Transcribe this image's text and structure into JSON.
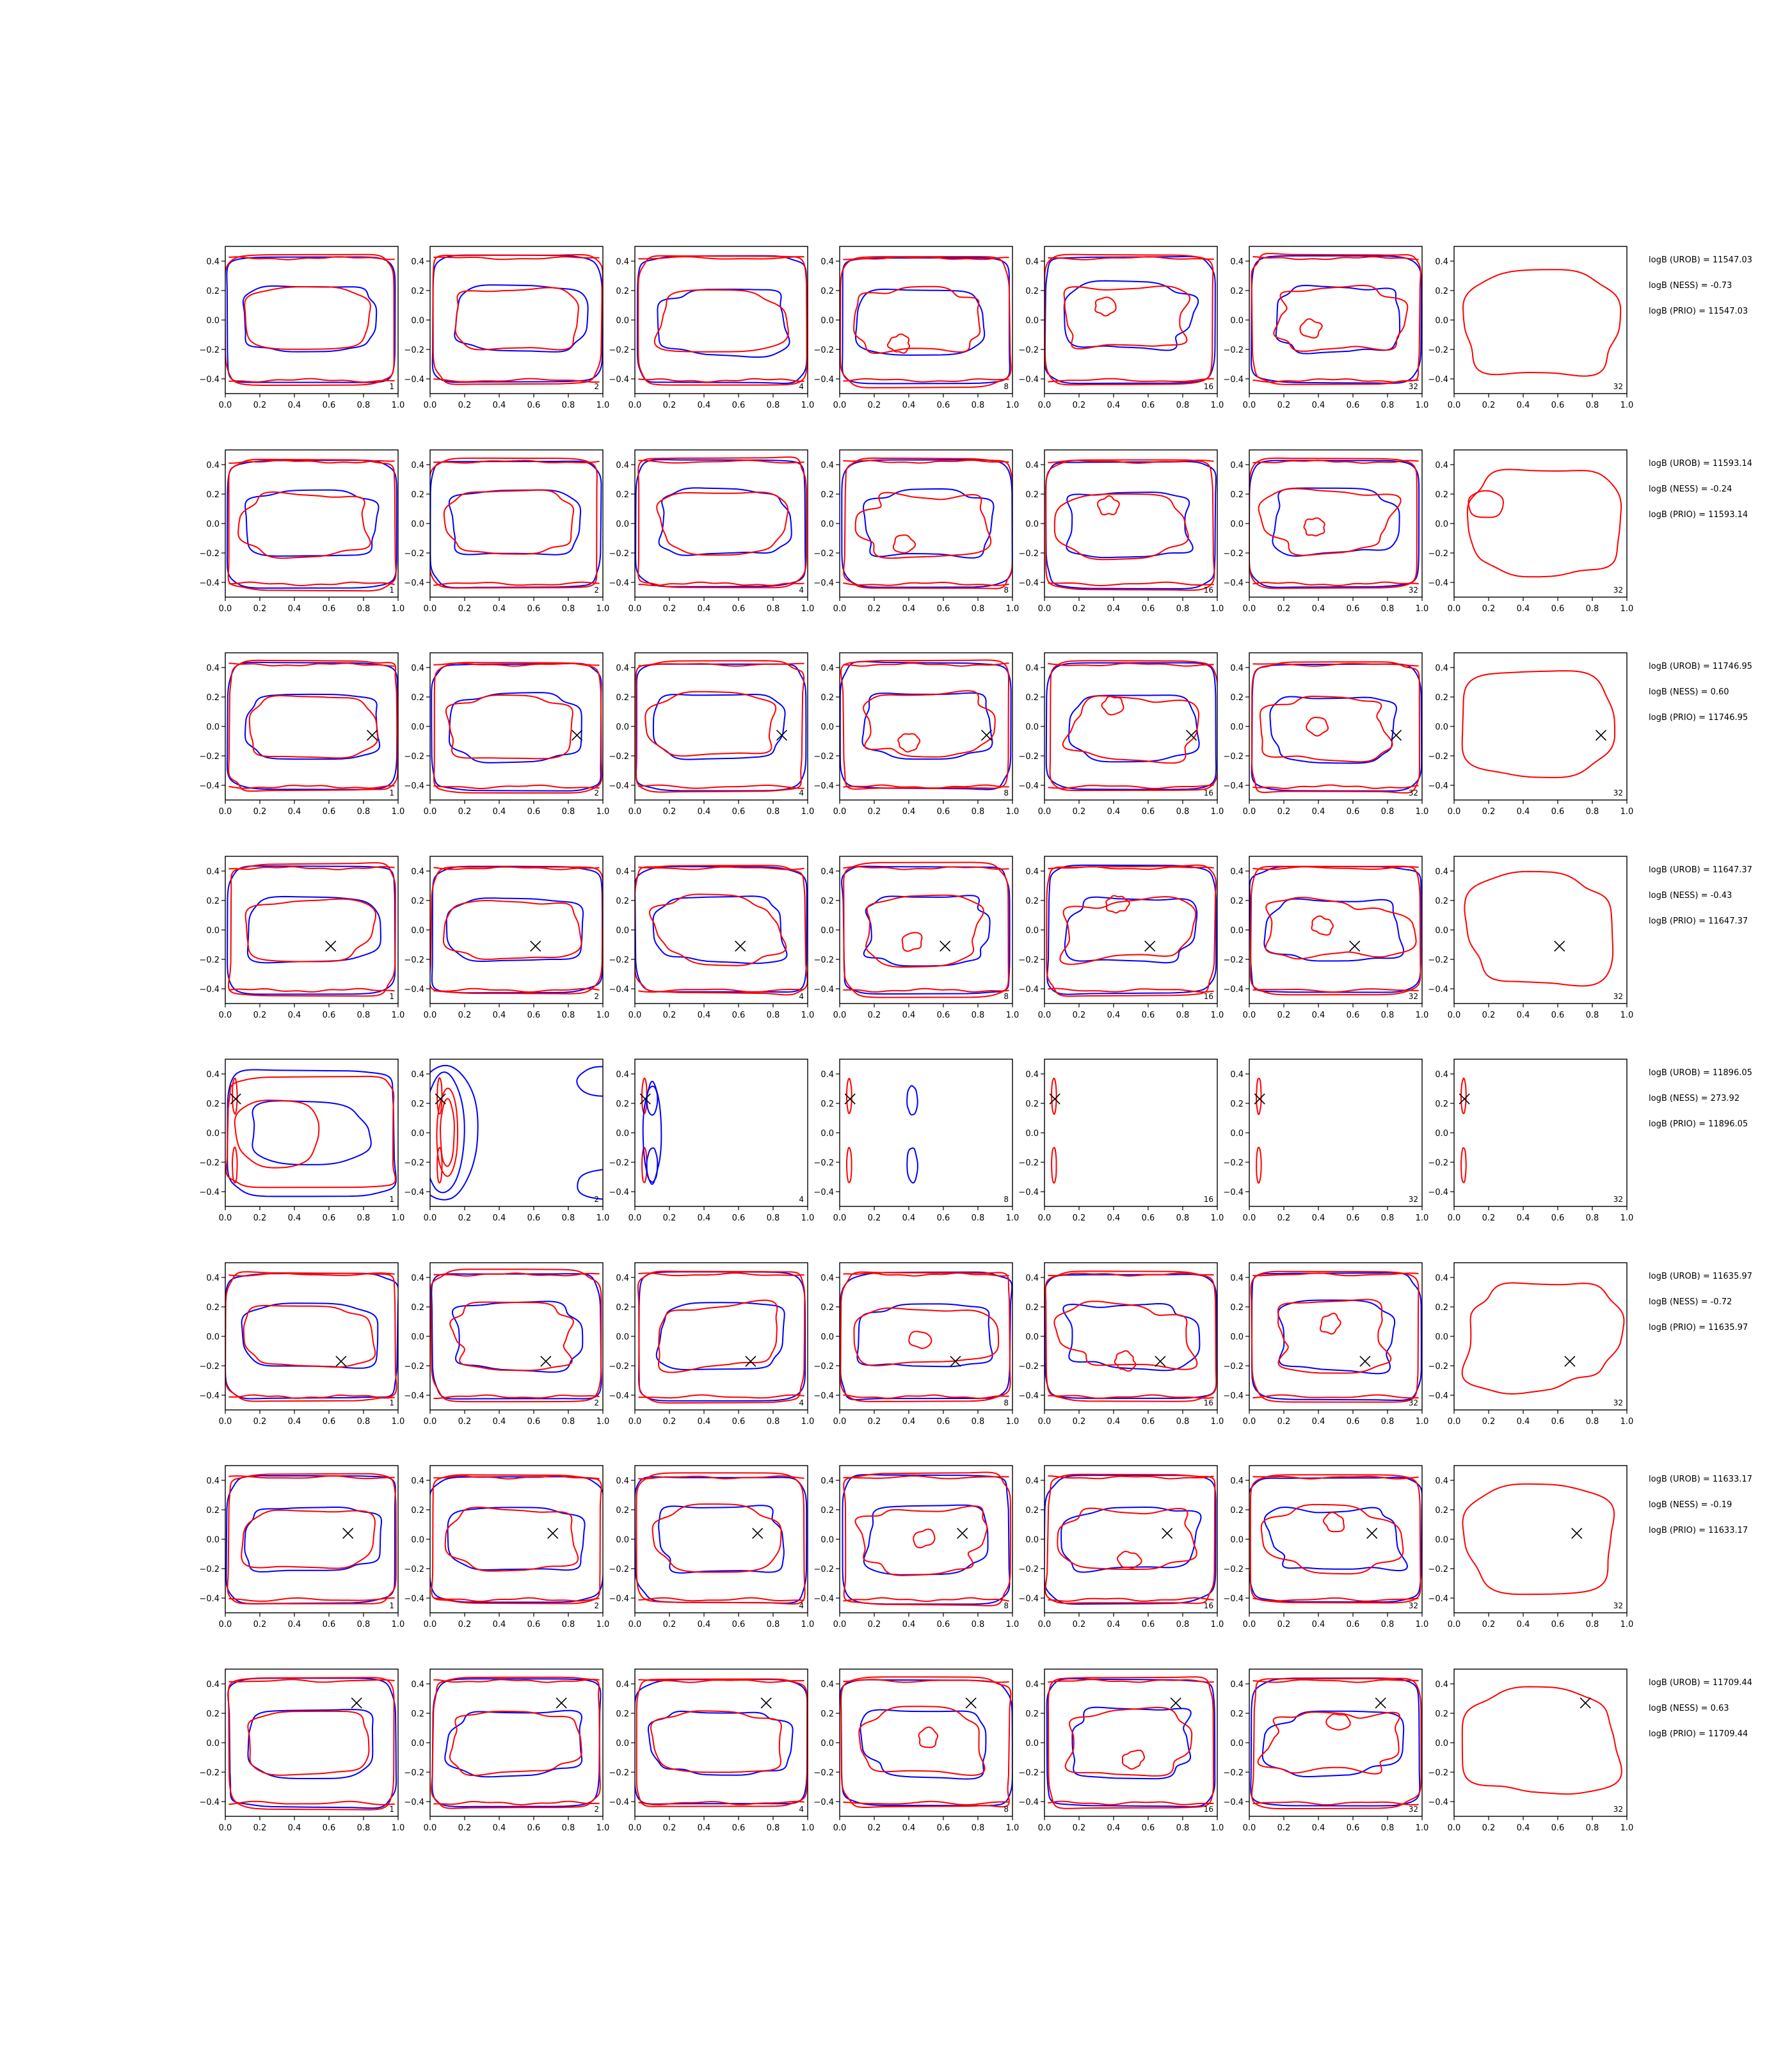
{
  "figure": {
    "rows": 8,
    "cols": 7,
    "colors": {
      "series_a": "#0000ff",
      "series_b": "#ff0000",
      "marker": "#000000",
      "frame": "#000000"
    }
  },
  "chart_data": {
    "type": "contour",
    "xlim": [
      0.0,
      1.0
    ],
    "ylim": [
      -0.5,
      0.5
    ],
    "x_ticks": [
      "0.0",
      "0.2",
      "0.4",
      "0.6",
      "0.8",
      "1.0"
    ],
    "y_ticks": [
      "0.4",
      "0.2",
      "0.0",
      "−0.2",
      "−0.4"
    ],
    "y_tick_values": [
      0.4,
      0.2,
      0.0,
      -0.2,
      -0.4
    ],
    "x_tick_values": [
      0.0,
      0.2,
      0.4,
      0.6,
      0.8,
      1.0
    ],
    "grid": false,
    "panel_labels": [
      "1",
      "2",
      "4",
      "8",
      "16",
      "32",
      "32"
    ],
    "rows": [
      {
        "marker": null,
        "annotations": [
          "logB (UROB) = 11547.03",
          "logB (NESS) = -0.73",
          "logB (PRIO) = 11547.03"
        ]
      },
      {
        "marker": null,
        "annotations": [
          "logB (UROB) = 11593.14",
          "logB (NESS) = -0.24",
          "logB (PRIO) = 11593.14"
        ]
      },
      {
        "marker": [
          0.85,
          -0.06
        ],
        "annotations": [
          "logB (UROB) = 11746.95",
          "logB (NESS) = 0.60",
          "logB (PRIO) = 11746.95"
        ]
      },
      {
        "marker": [
          0.61,
          -0.11
        ],
        "annotations": [
          "logB (UROB) = 11647.37",
          "logB (NESS) = -0.43",
          "logB (PRIO) = 11647.37"
        ]
      },
      {
        "marker": [
          0.06,
          0.23
        ],
        "annotations": [
          "logB (UROB) = 11896.05",
          "logB (NESS) = 273.92",
          "logB (PRIO) = 11896.05"
        ]
      },
      {
        "marker": [
          0.67,
          -0.17
        ],
        "annotations": [
          "logB (UROB) = 11635.97",
          "logB (NESS) = -0.72",
          "logB (PRIO) = 11635.97"
        ]
      },
      {
        "marker": [
          0.71,
          0.04
        ],
        "annotations": [
          "logB (UROB) = 11633.17",
          "logB (NESS) = -0.19",
          "logB (PRIO) = 11633.17"
        ]
      },
      {
        "marker": [
          0.76,
          0.27
        ],
        "annotations": [
          "logB (UROB) = 11709.44",
          "logB (NESS) = 0.63",
          "logB (PRIO) = 11709.44"
        ]
      }
    ]
  }
}
